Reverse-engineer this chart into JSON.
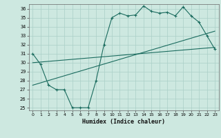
{
  "xlabel": "Humidex (Indice chaleur)",
  "bg_color": "#cde8e0",
  "grid_color": "#aacfc7",
  "line_color": "#1a6b5e",
  "xlim": [
    -0.5,
    23.5
  ],
  "ylim": [
    24.7,
    36.5
  ],
  "xticks": [
    0,
    1,
    2,
    3,
    4,
    5,
    6,
    7,
    8,
    9,
    10,
    11,
    12,
    13,
    14,
    15,
    16,
    17,
    18,
    19,
    20,
    21,
    22,
    23
  ],
  "yticks": [
    25,
    26,
    27,
    28,
    29,
    30,
    31,
    32,
    33,
    34,
    35,
    36
  ],
  "line1_x": [
    0,
    1,
    2,
    3,
    4,
    5,
    6,
    7,
    8,
    9,
    10,
    11,
    12,
    13,
    14,
    15,
    16,
    17,
    18,
    19,
    20,
    21,
    22,
    23
  ],
  "line1_y": [
    31.0,
    29.8,
    27.5,
    27.0,
    27.0,
    25.0,
    25.0,
    25.0,
    28.0,
    32.0,
    35.0,
    35.5,
    35.2,
    35.3,
    36.3,
    35.7,
    35.5,
    35.6,
    35.2,
    36.2,
    35.2,
    34.5,
    33.0,
    31.5
  ],
  "line2_x": [
    0,
    23
  ],
  "line2_y": [
    30.0,
    31.7
  ],
  "line3_x": [
    0,
    23
  ],
  "line3_y": [
    27.5,
    33.5
  ]
}
